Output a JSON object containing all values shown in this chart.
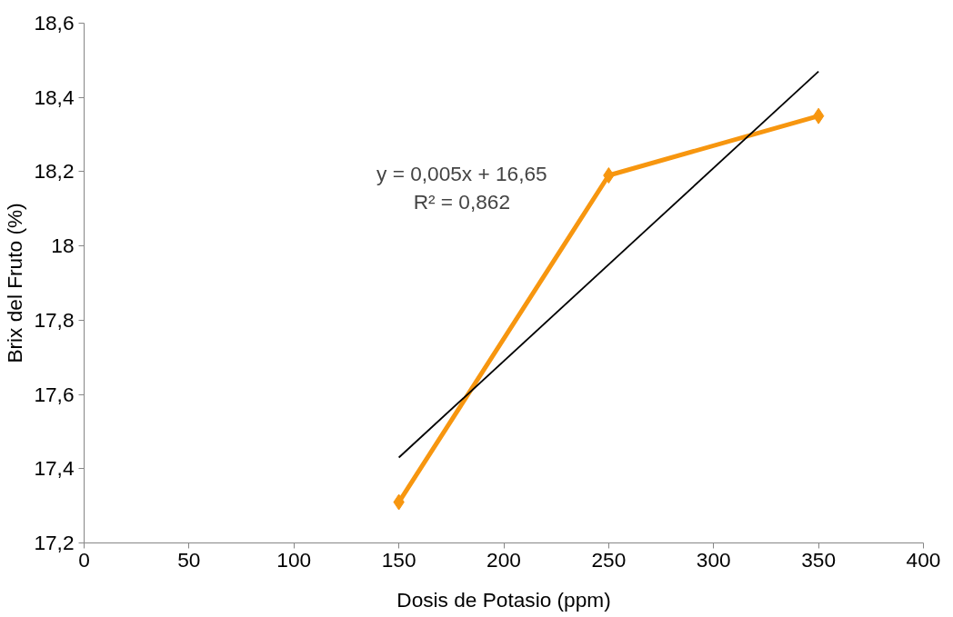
{
  "chart_data": {
    "type": "line",
    "xlabel": "Dosis de Potasio (ppm)",
    "ylabel": "Brix del Fruto (%)",
    "x": [
      150,
      250,
      350
    ],
    "series": [
      {
        "color": "#f7960f",
        "values": [
          17.31,
          18.19,
          18.35
        ],
        "marker": "diamond",
        "line_style": "solid"
      },
      {
        "type": "line",
        "color": "#000000",
        "x": [
          150,
          350
        ],
        "values": [
          17.43,
          18.47
        ],
        "marker": "none",
        "line_style": "solid"
      }
    ],
    "annotations": [
      "y = 0,005x + 16,65",
      "R² = 0,862"
    ],
    "xlim": [
      0,
      400
    ],
    "xticks": [
      0,
      50,
      100,
      150,
      200,
      250,
      300,
      350,
      400
    ],
    "ylim": [
      17.2,
      18.6
    ],
    "yticks": [
      {
        "value": 17.2,
        "label": "17,2"
      },
      {
        "value": 17.4,
        "label": "17,4"
      },
      {
        "value": 17.6,
        "label": "17,6"
      },
      {
        "value": 17.8,
        "label": "17,8"
      },
      18,
      {
        "value": 18.2,
        "label": "18,2"
      },
      {
        "value": 18.4,
        "label": "18,4"
      },
      {
        "value": 18.6,
        "label": "18,6"
      }
    ],
    "grid": false
  }
}
